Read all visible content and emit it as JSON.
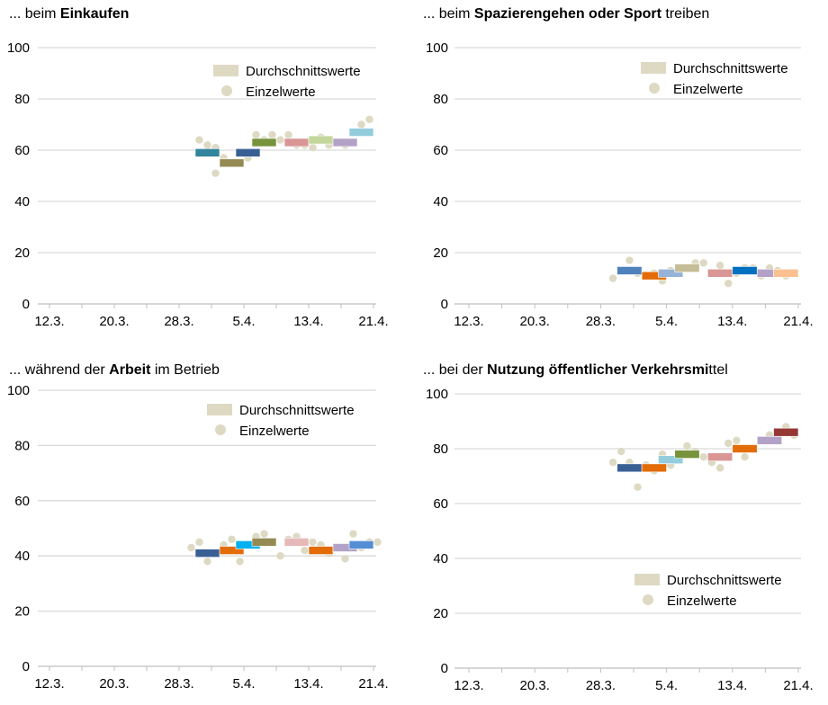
{
  "colors": {
    "points": "#ddd9c3",
    "legend_bar": "#ddd9c3",
    "grid": "#d9d9d9",
    "axis": "#bfbfbf"
  },
  "chart_data": [
    {
      "type": "scatter",
      "title": [
        {
          "t": "... beim ",
          "b": false
        },
        {
          "t": "Einkaufen",
          "b": true
        }
      ],
      "ylim": [
        0,
        100
      ],
      "yticks": [
        0,
        20,
        40,
        60,
        80,
        100
      ],
      "xticks": [
        "12.3.",
        "20.3.",
        "28.3.",
        "5.4.",
        "13.4.",
        "21.4."
      ],
      "grid": true,
      "legend_position": "top-right",
      "legend": {
        "averages": "Durchschnittswerte",
        "points": "Einzelwerte"
      },
      "averages": [
        {
          "from": "30.3.",
          "to": "2.4.",
          "value": 59,
          "color": "#31859c"
        },
        {
          "from": "2.4.",
          "to": "5.4.",
          "value": 55,
          "color": "#948a54"
        },
        {
          "from": "4.4.",
          "to": "7.4.",
          "value": 59,
          "color": "#3a5f95"
        },
        {
          "from": "6.4.",
          "to": "9.4.",
          "value": 63,
          "color": "#77933c"
        },
        {
          "from": "10.4.",
          "to": "13.4.",
          "value": 63,
          "color": "#d99694"
        },
        {
          "from": "13.4.",
          "to": "16.4.",
          "value": 64,
          "color": "#c3d69b"
        },
        {
          "from": "16.4.",
          "to": "19.4.",
          "value": 63,
          "color": "#b3a2c7"
        },
        {
          "from": "18.4.",
          "to": "21.4.",
          "value": 67,
          "color": "#93cddd"
        }
      ],
      "points": [
        [
          "30.3.",
          64
        ],
        [
          "31.3.",
          62
        ],
        [
          "1.4.",
          61
        ],
        [
          "1.4.",
          51
        ],
        [
          "2.4.",
          57
        ],
        [
          "4.4.",
          59
        ],
        [
          "5.4.",
          57
        ],
        [
          "6.4.",
          66
        ],
        [
          "7.4.",
          64
        ],
        [
          "8.4.",
          66
        ],
        [
          "9.4.",
          64
        ],
        [
          "10.4.",
          66
        ],
        [
          "11.4.",
          62
        ],
        [
          "12.4.",
          62
        ],
        [
          "13.4.",
          61
        ],
        [
          "14.4.",
          65
        ],
        [
          "15.4.",
          62
        ],
        [
          "16.4.",
          63
        ],
        [
          "17.4.",
          62
        ],
        [
          "18.4.",
          63
        ],
        [
          "19.4.",
          70
        ],
        [
          "20.4.",
          72
        ]
      ]
    },
    {
      "type": "scatter",
      "title": [
        {
          "t": "... beim ",
          "b": false
        },
        {
          "t": "Spazierengehen oder Sport",
          "b": true
        },
        {
          "t": " treiben",
          "b": false
        }
      ],
      "ylim": [
        0,
        100
      ],
      "yticks": [
        0,
        20,
        40,
        60,
        80,
        100
      ],
      "xticks": [
        "12.3.",
        "20.3.",
        "28.3.",
        "5.4.",
        "13.4.",
        "21.4."
      ],
      "grid": true,
      "legend_position": "top-right",
      "legend": {
        "averages": "Durchschnittswerte",
        "points": "Einzelwerte"
      },
      "averages": [
        {
          "from": "30.3.",
          "to": "2.4.",
          "value": 13,
          "color": "#4f81bd"
        },
        {
          "from": "2.4.",
          "to": "5.4.",
          "value": 11,
          "color": "#e36c09"
        },
        {
          "from": "4.4.",
          "to": "7.4.",
          "value": 12,
          "color": "#95b3d7"
        },
        {
          "from": "6.4.",
          "to": "9.4.",
          "value": 14,
          "color": "#c4bd97"
        },
        {
          "from": "10.4.",
          "to": "13.4.",
          "value": 12,
          "color": "#d99694"
        },
        {
          "from": "13.4.",
          "to": "16.4.",
          "value": 13,
          "color": "#0070c0"
        },
        {
          "from": "16.4.",
          "to": "18.4.",
          "value": 12,
          "color": "#b3a2c7"
        },
        {
          "from": "18.4.",
          "to": "21.4.",
          "value": 12,
          "color": "#fac090"
        }
      ],
      "points": [
        [
          "29.3.",
          10
        ],
        [
          "31.3.",
          17
        ],
        [
          "1.4.",
          12
        ],
        [
          "3.4.",
          12
        ],
        [
          "4.4.",
          9
        ],
        [
          "5.4.",
          13
        ],
        [
          "6.4.",
          12
        ],
        [
          "8.4.",
          16
        ],
        [
          "9.4.",
          16
        ],
        [
          "10.4.",
          12
        ],
        [
          "11.4.",
          15
        ],
        [
          "12.4.",
          8
        ],
        [
          "13.4.",
          12
        ],
        [
          "14.4.",
          14
        ],
        [
          "15.4.",
          14
        ],
        [
          "16.4.",
          11
        ],
        [
          "17.4.",
          14
        ],
        [
          "18.4.",
          13
        ],
        [
          "19.4.",
          11
        ],
        [
          "20.4.",
          12
        ]
      ]
    },
    {
      "type": "scatter",
      "title": [
        {
          "t": "... während der ",
          "b": false
        },
        {
          "t": "Arbeit",
          "b": true
        },
        {
          "t": " im Betrieb",
          "b": false
        }
      ],
      "ylim": [
        0,
        100
      ],
      "yticks": [
        0,
        20,
        40,
        60,
        80,
        100
      ],
      "xticks": [
        "12.3.",
        "20.3.",
        "28.3.",
        "5.4.",
        "13.4.",
        "21.4."
      ],
      "grid": true,
      "legend_position": "top-right",
      "legend": {
        "averages": "Durchschnittswerte",
        "points": "Einzelwerte"
      },
      "averages": [
        {
          "from": "30.3.",
          "to": "2.4.",
          "value": 41,
          "color": "#3a5f95"
        },
        {
          "from": "2.4.",
          "to": "5.4.",
          "value": 42,
          "color": "#e36c09"
        },
        {
          "from": "4.4.",
          "to": "7.4.",
          "value": 44,
          "color": "#00b0f0"
        },
        {
          "from": "6.4.",
          "to": "9.4.",
          "value": 45,
          "color": "#948a54"
        },
        {
          "from": "10.4.",
          "to": "13.4.",
          "value": 45,
          "color": "#e6b9b8"
        },
        {
          "from": "13.4.",
          "to": "16.4.",
          "value": 42,
          "color": "#e36c09"
        },
        {
          "from": "16.4.",
          "to": "19.4.",
          "value": 43,
          "color": "#b3a2c7"
        },
        {
          "from": "18.4.",
          "to": "21.4.",
          "value": 44,
          "color": "#558ed5"
        }
      ],
      "points": [
        [
          "29.3.",
          43
        ],
        [
          "30.3.",
          45
        ],
        [
          "31.3.",
          38
        ],
        [
          "2.4.",
          44
        ],
        [
          "3.4.",
          46
        ],
        [
          "4.4.",
          38
        ],
        [
          "6.4.",
          47
        ],
        [
          "7.4.",
          48
        ],
        [
          "9.4.",
          40
        ],
        [
          "10.4.",
          46
        ],
        [
          "11.4.",
          47
        ],
        [
          "12.4.",
          42
        ],
        [
          "13.4.",
          45
        ],
        [
          "14.4.",
          44
        ],
        [
          "15.4.",
          41
        ],
        [
          "17.4.",
          39
        ],
        [
          "18.4.",
          48
        ],
        [
          "19.4.",
          43
        ],
        [
          "20.4.",
          45
        ],
        [
          "21.4.",
          45
        ]
      ]
    },
    {
      "type": "scatter",
      "title": [
        {
          "t": "... bei der ",
          "b": false
        },
        {
          "t": "Nutzung öffentlicher Verkehrsmi",
          "b": true
        },
        {
          "t": "ttel",
          "b": false
        }
      ],
      "ylim": [
        0,
        100
      ],
      "yticks": [
        0,
        20,
        40,
        60,
        80,
        100
      ],
      "xticks": [
        "12.3.",
        "20.3.",
        "28.3.",
        "5.4.",
        "13.4.",
        "21.4."
      ],
      "grid": true,
      "legend_position": "bottom-right",
      "legend": {
        "averages": "Durchschnittswerte",
        "points": "Einzelwerte"
      },
      "averages": [
        {
          "from": "30.3.",
          "to": "2.4.",
          "value": 73,
          "color": "#3a5f95"
        },
        {
          "from": "2.4.",
          "to": "5.4.",
          "value": 73,
          "color": "#e36c09"
        },
        {
          "from": "4.4.",
          "to": "7.4.",
          "value": 76,
          "color": "#93cddd"
        },
        {
          "from": "6.4.",
          "to": "9.4.",
          "value": 78,
          "color": "#77933c"
        },
        {
          "from": "10.4.",
          "to": "13.4.",
          "value": 77,
          "color": "#d99694"
        },
        {
          "from": "13.4.",
          "to": "16.4.",
          "value": 80,
          "color": "#e36c09"
        },
        {
          "from": "16.4.",
          "to": "19.4.",
          "value": 83,
          "color": "#b3a2c7"
        },
        {
          "from": "18.4.",
          "to": "21.4.",
          "value": 86,
          "color": "#953735"
        }
      ],
      "points": [
        [
          "29.3.",
          75
        ],
        [
          "30.3.",
          79
        ],
        [
          "31.3.",
          75
        ],
        [
          "1.4.",
          66
        ],
        [
          "2.4.",
          74
        ],
        [
          "3.4.",
          72
        ],
        [
          "4.4.",
          78
        ],
        [
          "5.4.",
          74
        ],
        [
          "6.4.",
          77
        ],
        [
          "7.4.",
          81
        ],
        [
          "8.4.",
          79
        ],
        [
          "9.4.",
          77
        ],
        [
          "10.4.",
          75
        ],
        [
          "11.4.",
          73
        ],
        [
          "12.4.",
          82
        ],
        [
          "13.4.",
          83
        ],
        [
          "14.4.",
          77
        ],
        [
          "15.4.",
          80
        ],
        [
          "17.4.",
          85
        ],
        [
          "19.4.",
          88
        ],
        [
          "20.4.",
          85
        ]
      ]
    }
  ]
}
